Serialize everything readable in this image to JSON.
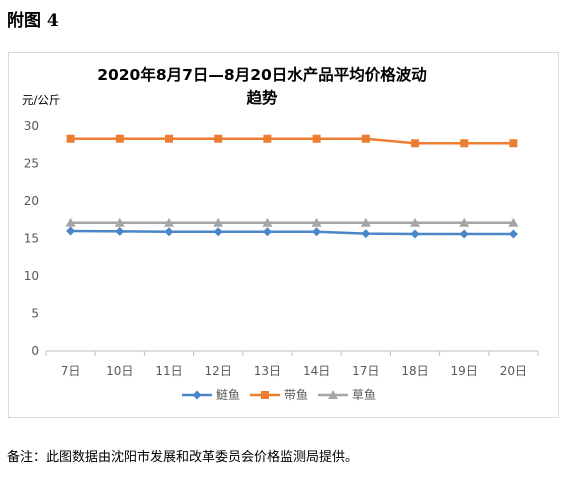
{
  "figure_label": "附图 4",
  "footnote": "备注：此图数据由沈阳市发展和改革委员会价格监测局提供。",
  "chart_data": {
    "type": "line",
    "title_lines": [
      "2020年8月7日—8月20日水产品平均价格波动",
      "趋势"
    ],
    "ylabel": "元/公斤",
    "xlabel": "",
    "categories": [
      "7日",
      "10日",
      "11日",
      "12日",
      "13日",
      "14日",
      "17日",
      "18日",
      "19日",
      "20日"
    ],
    "ylim": [
      0,
      30
    ],
    "yticks": [
      0,
      5,
      10,
      15,
      20,
      25,
      30
    ],
    "grid": false,
    "legend_position": "bottom",
    "series": [
      {
        "name": "鲢鱼",
        "color": "#4a86c8",
        "marker": "diamond",
        "values": [
          16.0,
          15.95,
          15.9,
          15.9,
          15.9,
          15.9,
          15.65,
          15.6,
          15.6,
          15.6
        ]
      },
      {
        "name": "带鱼",
        "color": "#ed7d31",
        "marker": "square",
        "values": [
          28.3,
          28.3,
          28.3,
          28.3,
          28.3,
          28.3,
          28.3,
          27.7,
          27.7,
          27.7
        ]
      },
      {
        "name": "草鱼",
        "color": "#a5a5a5",
        "marker": "triangle",
        "values": [
          17.1,
          17.1,
          17.1,
          17.1,
          17.1,
          17.1,
          17.1,
          17.1,
          17.1,
          17.1
        ]
      }
    ]
  }
}
